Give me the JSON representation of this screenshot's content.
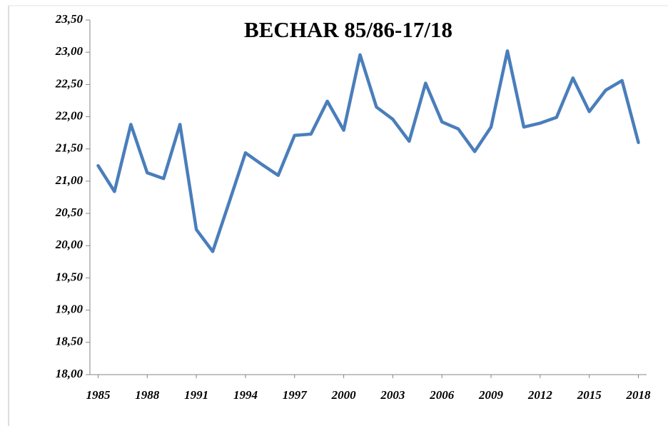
{
  "chart_data": {
    "type": "line",
    "title": "BECHAR 85/86-17/18",
    "x": [
      1985,
      1986,
      1987,
      1988,
      1989,
      1990,
      1991,
      1992,
      1993,
      1994,
      1995,
      1996,
      1997,
      1998,
      1999,
      2000,
      2001,
      2002,
      2003,
      2004,
      2005,
      2006,
      2007,
      2008,
      2009,
      2010,
      2011,
      2012,
      2013,
      2014,
      2015,
      2016,
      2017,
      2018
    ],
    "series": [
      {
        "name": "BECHAR",
        "color": "#4a7ebb",
        "values": [
          21.24,
          20.84,
          21.88,
          21.13,
          21.04,
          21.88,
          20.25,
          19.91,
          20.67,
          21.44,
          21.26,
          21.09,
          21.71,
          21.73,
          22.24,
          21.79,
          22.96,
          22.15,
          21.96,
          21.62,
          22.52,
          21.92,
          21.81,
          21.46,
          21.84,
          23.02,
          21.84,
          21.9,
          21.99,
          22.6,
          22.08,
          22.41,
          22.56,
          21.6
        ]
      }
    ],
    "xlim": [
      1984.5,
      2018.5
    ],
    "xticks": [
      1985,
      1988,
      1991,
      1994,
      1997,
      2000,
      2003,
      2006,
      2009,
      2012,
      2015,
      2018
    ],
    "ylim": [
      18,
      23.5
    ],
    "yticks": [
      {
        "value": 18,
        "label": "18,00"
      },
      {
        "value": 18.5,
        "label": "18,50"
      },
      {
        "value": 19,
        "label": "19,00"
      },
      {
        "value": 19.5,
        "label": "19,50"
      },
      {
        "value": 20,
        "label": "20,00"
      },
      {
        "value": 20.5,
        "label": "20,50"
      },
      {
        "value": 21,
        "label": "21,00"
      },
      {
        "value": 21.5,
        "label": "21,50"
      },
      {
        "value": 22,
        "label": "22,00"
      },
      {
        "value": 22.5,
        "label": "22,50"
      },
      {
        "value": 23,
        "label": "23,00"
      },
      {
        "value": 23.5,
        "label": "23,50"
      }
    ],
    "grid": false
  }
}
